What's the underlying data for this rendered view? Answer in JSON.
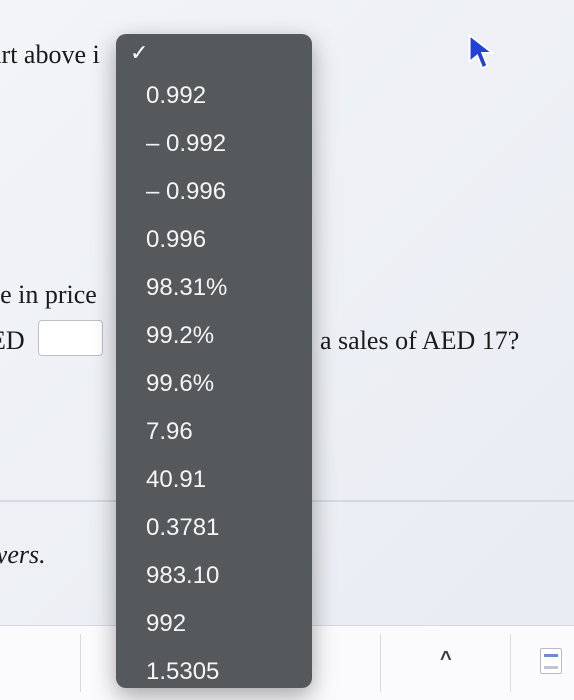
{
  "background": {
    "line1": "art above i",
    "line2": "se in price",
    "line3_left": "ED",
    "line3_right": "a sales of AED 17?",
    "footer_label": "wers."
  },
  "dropdown": {
    "checked": true,
    "options": [
      "0.992",
      "– 0.992",
      "– 0.996",
      "0.996",
      "98.31%",
      "99.2%",
      "99.6%",
      "7.96",
      "40.91",
      "0.3781",
      "983.10",
      "992",
      "1.5305"
    ]
  },
  "colors": {
    "dropdown_bg": "#56595c",
    "dropdown_text": "#f5f5f5",
    "page_bg_from": "#f2f4f8",
    "page_bg_to": "#e8ebf2",
    "divider": "#d5d8e0",
    "cursor_fill": "#2341d6"
  }
}
